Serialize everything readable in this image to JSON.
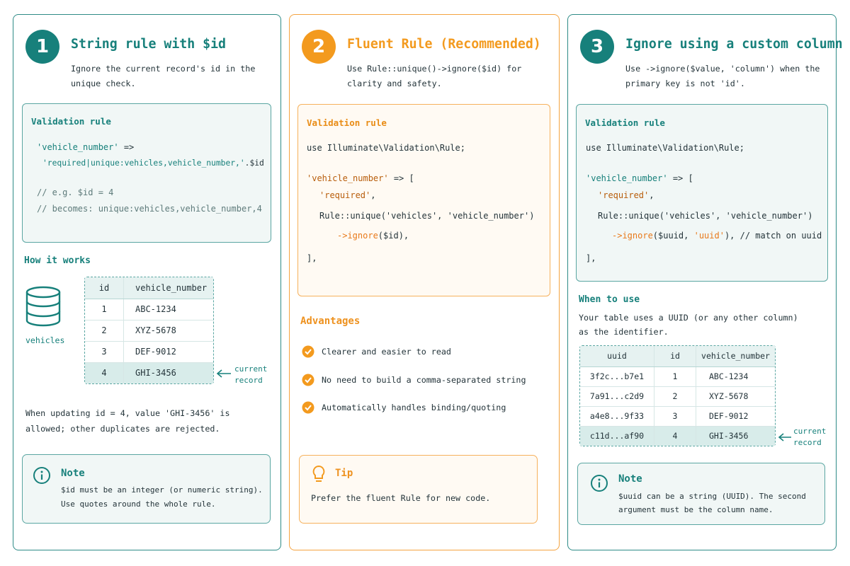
{
  "panels": [
    {
      "number": "1",
      "title": "String rule with $id",
      "description": "Ignore the current record's id in the unique check.",
      "code": {
        "heading": "Validation rule",
        "lines": [
          [
            "'vehicle_number'",
            " =>"
          ],
          [
            "'required|unique:vehicles,vehicle_number,'",
            ".$id"
          ],
          [
            "// e.g. $id = 4"
          ],
          [
            "// becomes: unique:vehicles,vehicle_number,4"
          ]
        ]
      },
      "how_it_works": {
        "heading": "How it works",
        "db_label": "vehicles",
        "table": {
          "headers": [
            "id",
            "vehicle_number"
          ],
          "rows": [
            [
              "1",
              "ABC-1234"
            ],
            [
              "2",
              "XYZ-5678"
            ],
            [
              "3",
              "DEF-9012"
            ],
            [
              "4",
              "GHI-3456"
            ]
          ]
        },
        "annotation": "current record",
        "caption": "When updating id = 4, value 'GHI-3456' is allowed; other duplicates are rejected."
      },
      "note": {
        "title": "Note",
        "text": "$id must be an integer (or numeric string). Use quotes around the whole rule."
      }
    },
    {
      "number": "2",
      "title": "Fluent Rule (Recommended)",
      "description": "Use Rule::unique()->ignore($id) for clarity and safety.",
      "code": {
        "heading": "Validation rule",
        "lines": [
          [
            "use Illuminate\\Validation\\Rule;"
          ],
          [
            "'vehicle_number'",
            " => ["
          ],
          [
            "'required'",
            ","
          ],
          [
            "Rule::unique('vehicles', 'vehicle_number')"
          ],
          [
            "->ignore",
            "($id),"
          ],
          [
            "],"
          ]
        ]
      },
      "advantages": {
        "heading": "Advantages",
        "items": [
          "Clearer and easier to read",
          "No need to build a comma-separated string",
          "Automatically handles binding/quoting"
        ]
      },
      "tip": {
        "title": "Tip",
        "text": "Prefer the fluent Rule for new code."
      }
    },
    {
      "number": "3",
      "title": "Ignore using a custom column",
      "description": "Use ->ignore($value, 'column') when the primary key is not 'id'.",
      "code": {
        "heading": "Validation rule",
        "lines": [
          [
            "use Illuminate\\Validation\\Rule;"
          ],
          [
            "'vehicle_number'",
            " => ["
          ],
          [
            "'required'",
            ","
          ],
          [
            "Rule::unique('vehicles', 'vehicle_number')"
          ],
          [
            "->ignore",
            "($uuid, ",
            "'uuid'",
            "), // match on uuid"
          ],
          [
            "],"
          ]
        ]
      },
      "when_to_use": {
        "heading": "When to use",
        "text": "Your table uses a UUID (or any other column) as the identifier.",
        "table": {
          "headers": [
            "uuid",
            "id",
            "vehicle_number"
          ],
          "rows": [
            [
              "3f2c...b7e1",
              "1",
              "ABC-1234"
            ],
            [
              "7a91...c2d9",
              "2",
              "XYZ-5678"
            ],
            [
              "a4e8...9f33",
              "3",
              "DEF-9012"
            ],
            [
              "c11d...af90",
              "4",
              "GHI-3456"
            ]
          ]
        },
        "annotation": "current record"
      },
      "note": {
        "title": "Note",
        "text": "$uuid can be a string (UUID). The second argument must be the column name."
      }
    }
  ]
}
